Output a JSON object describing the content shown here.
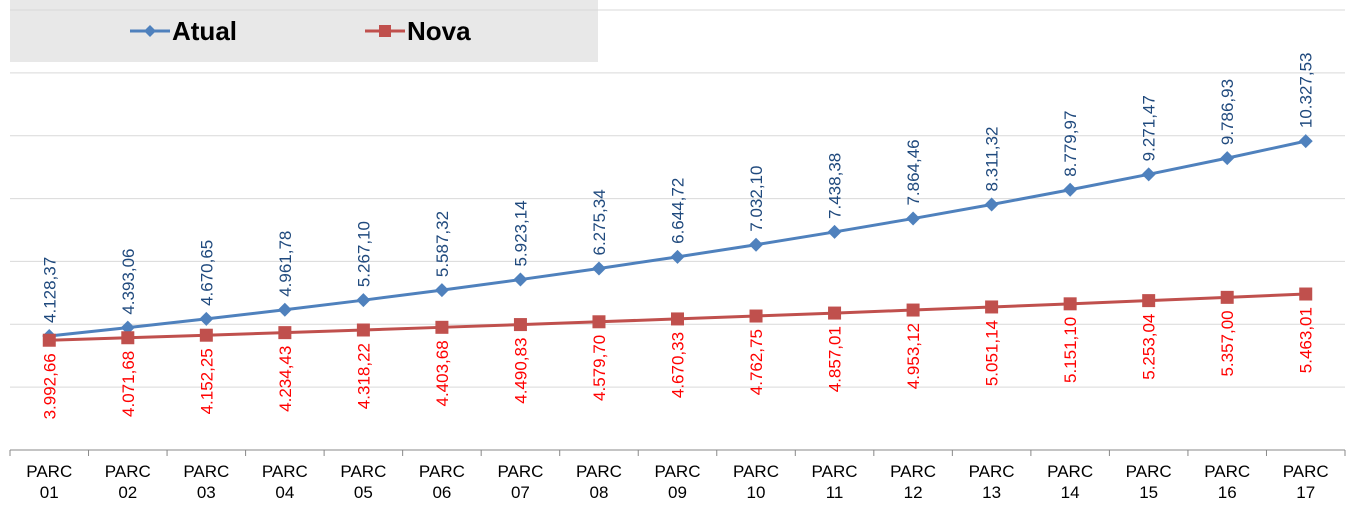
{
  "chart_data": {
    "type": "line",
    "categories": [
      "PARC 01",
      "PARC 02",
      "PARC 03",
      "PARC 04",
      "PARC 05",
      "PARC 06",
      "PARC 07",
      "PARC 08",
      "PARC 09",
      "PARC 10",
      "PARC 11",
      "PARC 12",
      "PARC 13",
      "PARC 14",
      "PARC 15",
      "PARC 16",
      "PARC 17"
    ],
    "series": [
      {
        "name": "Atual",
        "color": "#4f81bd",
        "label_color": "#1f497d",
        "values": [
          4128.37,
          4393.06,
          4670.65,
          4961.78,
          5267.1,
          5587.32,
          5923.14,
          6275.34,
          6644.72,
          7032.1,
          7438.38,
          7864.46,
          8311.32,
          8779.97,
          9271.47,
          9786.93,
          10327.53
        ],
        "value_labels": [
          "4.128,37",
          "4.393,06",
          "4.670,65",
          "4.961,78",
          "5.267,10",
          "5.587,32",
          "5.923,14",
          "6.275,34",
          "6.644,72",
          "7.032,10",
          "7.438,38",
          "7.864,46",
          "8.311,32",
          "8.779,97",
          "9.271,47",
          "9.786,93",
          "10.327,53"
        ]
      },
      {
        "name": "Nova",
        "color": "#c0504d",
        "label_color": "#ff0000",
        "values": [
          3992.66,
          4071.68,
          4152.25,
          4234.43,
          4318.22,
          4403.68,
          4490.83,
          4579.7,
          4670.33,
          4762.75,
          4857.01,
          4953.12,
          5051.14,
          5151.1,
          5253.04,
          5357.0,
          5463.01
        ],
        "value_labels": [
          "3.992,66",
          "4.071,68",
          "4.152,25",
          "4.234,43",
          "4.318,22",
          "4.403,68",
          "4.490,83",
          "4.579,70",
          "4.670,33",
          "4.762,75",
          "4.857,01",
          "4.953,12",
          "5.051,14",
          "5.151,10",
          "5.253,04",
          "5.357,00",
          "5.463,01"
        ]
      }
    ],
    "ylim": [
      500,
      14500
    ],
    "yticks": [
      500,
      2500,
      4500,
      6500,
      8500,
      10500,
      12500,
      14500
    ],
    "grid": true
  }
}
